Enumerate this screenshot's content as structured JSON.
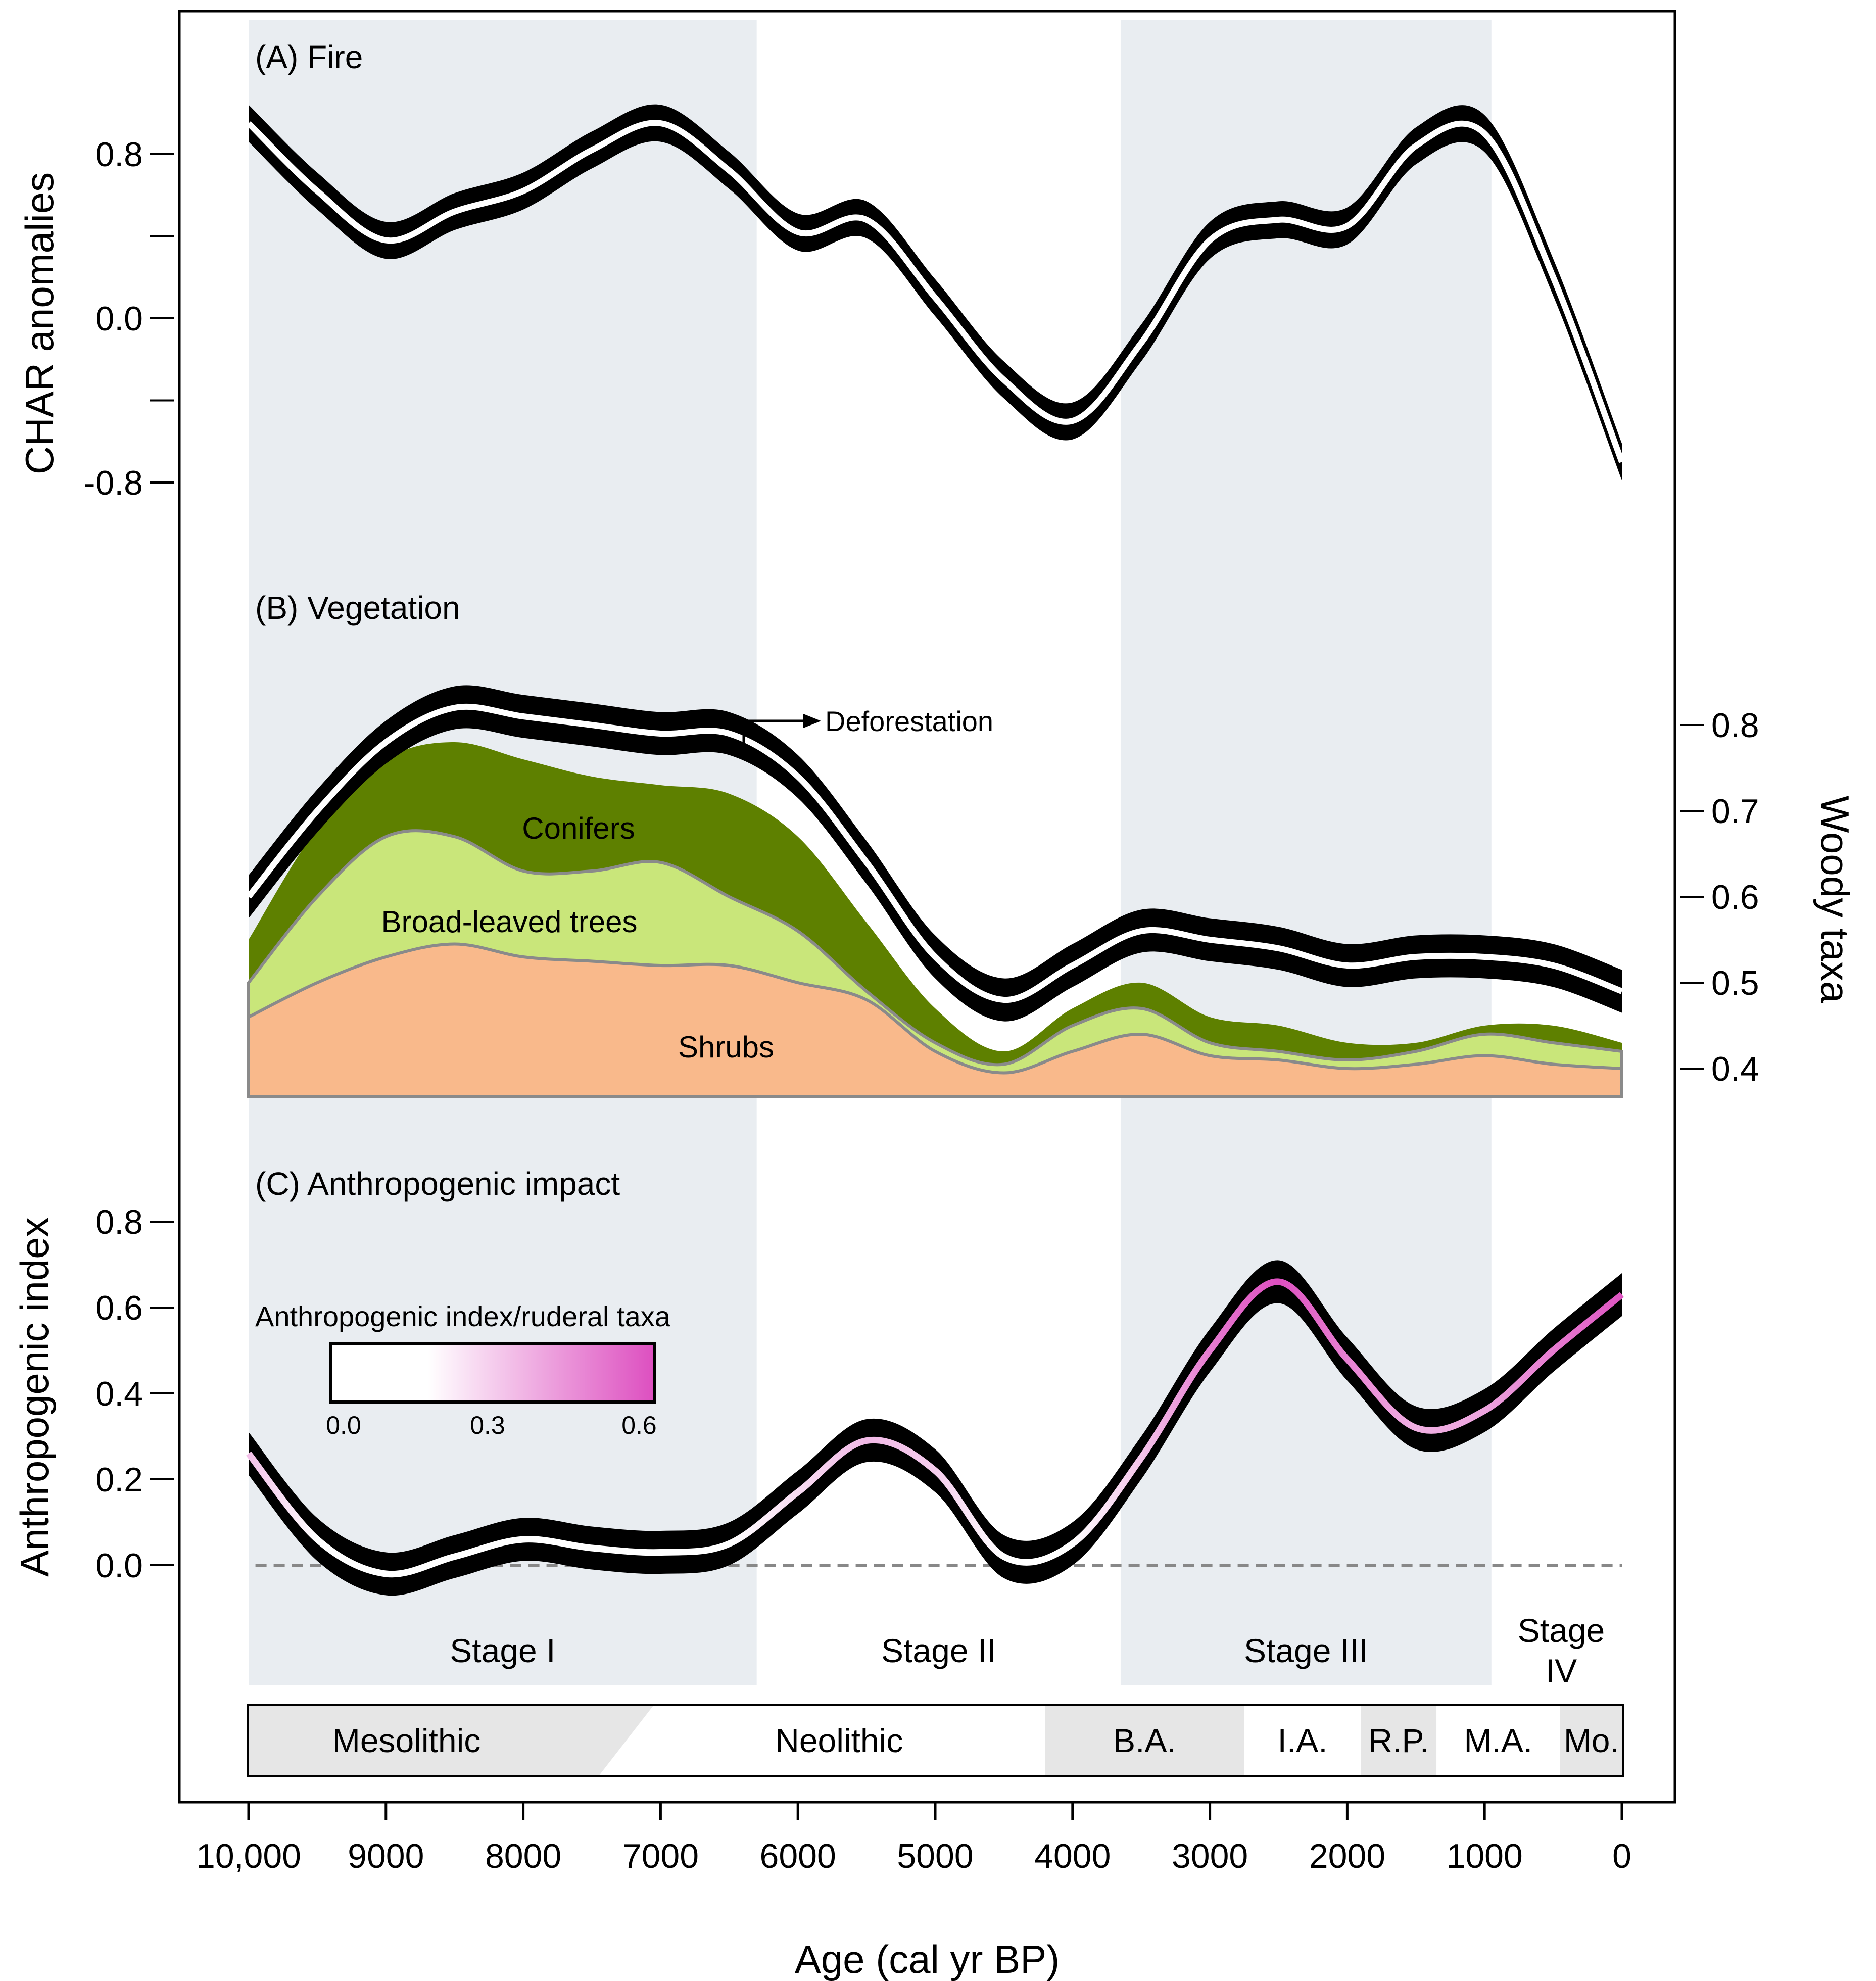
{
  "chart_data": {
    "type": "line",
    "x_axis": {
      "label": "Age (cal yr BP)",
      "range": [
        10000,
        0
      ],
      "ticks": [
        10000,
        9000,
        8000,
        7000,
        6000,
        5000,
        4000,
        3000,
        2000,
        1000,
        0
      ],
      "tick_labels": [
        "10,000",
        "9000",
        "8000",
        "7000",
        "6000",
        "5000",
        "4000",
        "3000",
        "2000",
        "1000",
        "0"
      ]
    },
    "stages": [
      {
        "label": "Stage I",
        "from": 10000,
        "to": 6300,
        "shaded": true
      },
      {
        "label": "Stage II",
        "from": 6300,
        "to": 3650,
        "shaded": false
      },
      {
        "label": "Stage III",
        "from": 3650,
        "to": 950,
        "shaded": true
      },
      {
        "label": "Stage\nIV",
        "from": 950,
        "to": 0,
        "shaded": false
      }
    ],
    "periods": [
      {
        "label": "Mesolithic",
        "from": 10000,
        "to": 7200,
        "shaded": true
      },
      {
        "label": "Neolithic",
        "from": 7200,
        "to": 4200,
        "shaded": false
      },
      {
        "label": "B.A.",
        "from": 4200,
        "to": 2750,
        "shaded": true
      },
      {
        "label": "I.A.",
        "from": 2750,
        "to": 1900,
        "shaded": false
      },
      {
        "label": "R.P.",
        "from": 1900,
        "to": 1350,
        "shaded": true
      },
      {
        "label": "M.A.",
        "from": 1350,
        "to": 450,
        "shaded": false
      },
      {
        "label": "Mo.",
        "from": 450,
        "to": 0,
        "shaded": true
      }
    ],
    "panels": [
      {
        "id": "A",
        "title": "(A) Fire",
        "ylabel": "CHAR anomalies",
        "ylim": [
          -0.8,
          0.8
        ],
        "yticks": [
          0.8,
          0.4,
          0.0,
          -0.4,
          -0.8
        ],
        "ytick_labels": [
          "0.8",
          "",
          "0.0",
          "",
          "-0.8"
        ],
        "x": [
          10000,
          9500,
          9000,
          8500,
          8000,
          7500,
          7000,
          6500,
          6000,
          5500,
          5000,
          4500,
          4000,
          3500,
          3000,
          2500,
          2000,
          1500,
          1000,
          500,
          0
        ],
        "y": [
          0.95,
          0.62,
          0.38,
          0.52,
          0.62,
          0.82,
          0.95,
          0.72,
          0.42,
          0.48,
          0.1,
          -0.3,
          -0.5,
          -0.12,
          0.38,
          0.48,
          0.45,
          0.84,
          0.9,
          0.2,
          -0.7
        ],
        "band": 0.09
      },
      {
        "id": "B",
        "title": "(B) Vegetation",
        "ylabel": "Woody taxa",
        "ylim": [
          0.4,
          0.8
        ],
        "yticks": [
          0.8,
          0.7,
          0.6,
          0.5,
          0.4
        ],
        "ytick_labels": [
          "0.8",
          "0.7",
          "0.6",
          "0.5",
          "0.4"
        ],
        "x": [
          10000,
          9500,
          9000,
          8500,
          8000,
          7500,
          7000,
          6500,
          6000,
          5500,
          5000,
          4500,
          4000,
          3500,
          3000,
          2500,
          2000,
          1500,
          1000,
          500,
          0
        ],
        "woody": [
          0.6,
          0.7,
          0.78,
          0.82,
          0.81,
          0.8,
          0.79,
          0.79,
          0.74,
          0.64,
          0.53,
          0.48,
          0.52,
          0.56,
          0.55,
          0.54,
          0.52,
          0.53,
          0.53,
          0.52,
          0.49
        ],
        "band": 0.025,
        "areas": [
          {
            "name": "Conifers",
            "color": "#5e8000",
            "top": [
              0.55,
              0.68,
              0.76,
              0.78,
              0.76,
              0.74,
              0.73,
              0.72,
              0.67,
              0.57,
              0.47,
              0.42,
              0.47,
              0.5,
              0.46,
              0.45,
              0.43,
              0.43,
              0.45,
              0.45,
              0.43
            ]
          },
          {
            "name": "Broad-leaved trees",
            "color": "#c9e67a",
            "top": [
              0.5,
              0.6,
              0.67,
              0.67,
              0.63,
              0.63,
              0.64,
              0.6,
              0.56,
              0.49,
              0.43,
              0.405,
              0.45,
              0.47,
              0.43,
              0.42,
              0.41,
              0.42,
              0.44,
              0.43,
              0.42
            ]
          },
          {
            "name": "Shrubs",
            "color": "#f9b98b",
            "top": [
              0.46,
              0.5,
              0.53,
              0.545,
              0.53,
              0.525,
              0.52,
              0.52,
              0.5,
              0.48,
              0.42,
              0.395,
              0.42,
              0.44,
              0.415,
              0.41,
              0.4,
              0.405,
              0.415,
              0.405,
              0.4
            ]
          }
        ],
        "annotation": "Deforestation"
      },
      {
        "id": "C",
        "title": "(C) Anthropogenic impact",
        "ylabel": "Anthropogenic index",
        "ylim": [
          0.0,
          0.8
        ],
        "yticks": [
          0.8,
          0.6,
          0.4,
          0.2,
          0.0
        ],
        "ytick_labels": [
          "0.8",
          "0.6",
          "0.4",
          "0.2",
          "0.0"
        ],
        "x": [
          10000,
          9500,
          9000,
          8500,
          8000,
          7500,
          7000,
          6500,
          6000,
          5500,
          5000,
          4500,
          4000,
          3500,
          3000,
          2500,
          2000,
          1500,
          1000,
          500,
          0
        ],
        "y": [
          0.26,
          0.06,
          -0.02,
          0.02,
          0.06,
          0.04,
          0.03,
          0.05,
          0.17,
          0.29,
          0.22,
          0.02,
          0.05,
          0.25,
          0.5,
          0.66,
          0.48,
          0.32,
          0.36,
          0.5,
          0.63
        ],
        "band": 0.05,
        "zero_line": 0.0,
        "colorbar": {
          "title": "Anthropogenic index/ruderal taxa",
          "ticks": [
            "0.0",
            "0.3",
            "0.6"
          ],
          "min_color": "#ffffff",
          "max_color": "#dd4fc0"
        }
      }
    ]
  }
}
